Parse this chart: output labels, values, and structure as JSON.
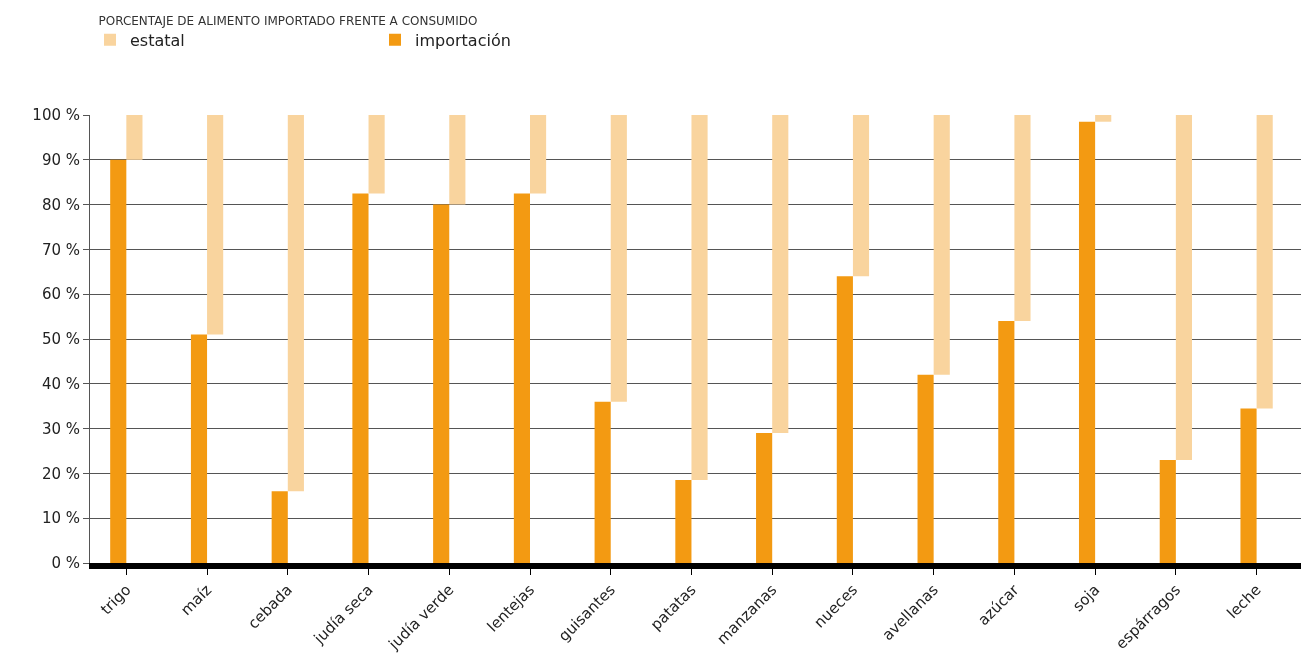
{
  "chart_data": {
    "type": "bar",
    "title": "PORCENTAJE DE ALIMENTO IMPORTADO FRENTE A CONSUMIDO",
    "categories": [
      "trigo",
      "maíz",
      "cebada",
      "judía seca",
      "judía verde",
      "lentejas",
      "guisantes",
      "patatas",
      "manzanas",
      "nueces",
      "avellanas",
      "azúcar",
      "soja",
      "espárragos",
      "leche"
    ],
    "series": [
      {
        "name": "importación",
        "color": "#f39a12",
        "values": [
          90,
          51,
          16,
          82.5,
          80,
          82.5,
          36,
          18.5,
          29,
          64,
          42,
          54,
          98.5,
          23,
          34.5
        ]
      },
      {
        "name": "estatal",
        "color": "#f9d49e",
        "base": [
          90,
          51,
          16,
          82.5,
          80,
          82.5,
          36,
          18.5,
          29,
          64,
          42,
          54,
          98.5,
          23,
          34.5
        ],
        "values": [
          10,
          49,
          84,
          17.5,
          20,
          17.5,
          64,
          81.5,
          71,
          36,
          58,
          46,
          1.5,
          77,
          65.5
        ]
      }
    ],
    "ylim": [
      0,
      100
    ],
    "yticks": [
      {
        "value": 0,
        "label": "0 %"
      },
      {
        "value": 10,
        "label": "10 %"
      },
      {
        "value": 20,
        "label": "20 %"
      },
      {
        "value": 30,
        "label": "30 %"
      },
      {
        "value": 40,
        "label": "40 %"
      },
      {
        "value": 50,
        "label": "50 %"
      },
      {
        "value": 60,
        "label": "60 %"
      },
      {
        "value": 70,
        "label": "70 %"
      },
      {
        "value": 80,
        "label": "80 %"
      },
      {
        "value": 90,
        "label": "90 %"
      },
      {
        "value": 100,
        "label": "100 %"
      }
    ],
    "grid": "y",
    "legend": "top left"
  }
}
